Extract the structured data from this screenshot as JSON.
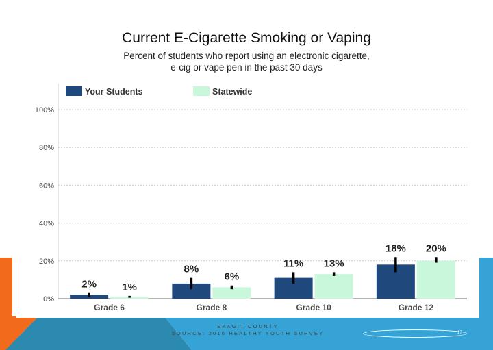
{
  "slide": {
    "title": "Current E-Cigarette Smoking or Vaping",
    "subtitle_line1": "Percent of students who report using an electronic cigarette,",
    "subtitle_line2": "e-cig or vape pen in the past 30 days",
    "footer_line1": "SKAGIT COUNTY",
    "footer_line2": "SOURCE: 2016 HEALTHY YOUTH SURVEY",
    "page_number": "17"
  },
  "colors": {
    "your_students": "#1f497d",
    "statewide": "#c9f7dc",
    "error_bar": "#000000",
    "axis_text": "#4a4a4a",
    "grid": "#cccccc",
    "accent_orange": "#f26a1b",
    "accent_blue": "#35a3d6",
    "accent_teal": "#2c89b0"
  },
  "chart_data": {
    "type": "bar",
    "categories": [
      "Grade 6",
      "Grade 8",
      "Grade 10",
      "Grade 12"
    ],
    "series": [
      {
        "name": "Your Students",
        "values": [
          2,
          8,
          11,
          18
        ],
        "labels": [
          "2%",
          "8%",
          "11%",
          "18%"
        ],
        "error_low": [
          1,
          5,
          8,
          14
        ],
        "error_high": [
          3,
          11,
          14,
          22
        ]
      },
      {
        "name": "Statewide",
        "values": [
          1,
          6,
          13,
          20
        ],
        "labels": [
          "1%",
          "6%",
          "13%",
          "20%"
        ],
        "error_low": [
          0.5,
          5,
          12,
          19
        ],
        "error_high": [
          1.5,
          7,
          14,
          22
        ]
      }
    ],
    "yticks": [
      "0%",
      "20%",
      "40%",
      "60%",
      "80%",
      "100%"
    ],
    "ylim": [
      0,
      100
    ],
    "legend_position": "top",
    "grid": true
  }
}
